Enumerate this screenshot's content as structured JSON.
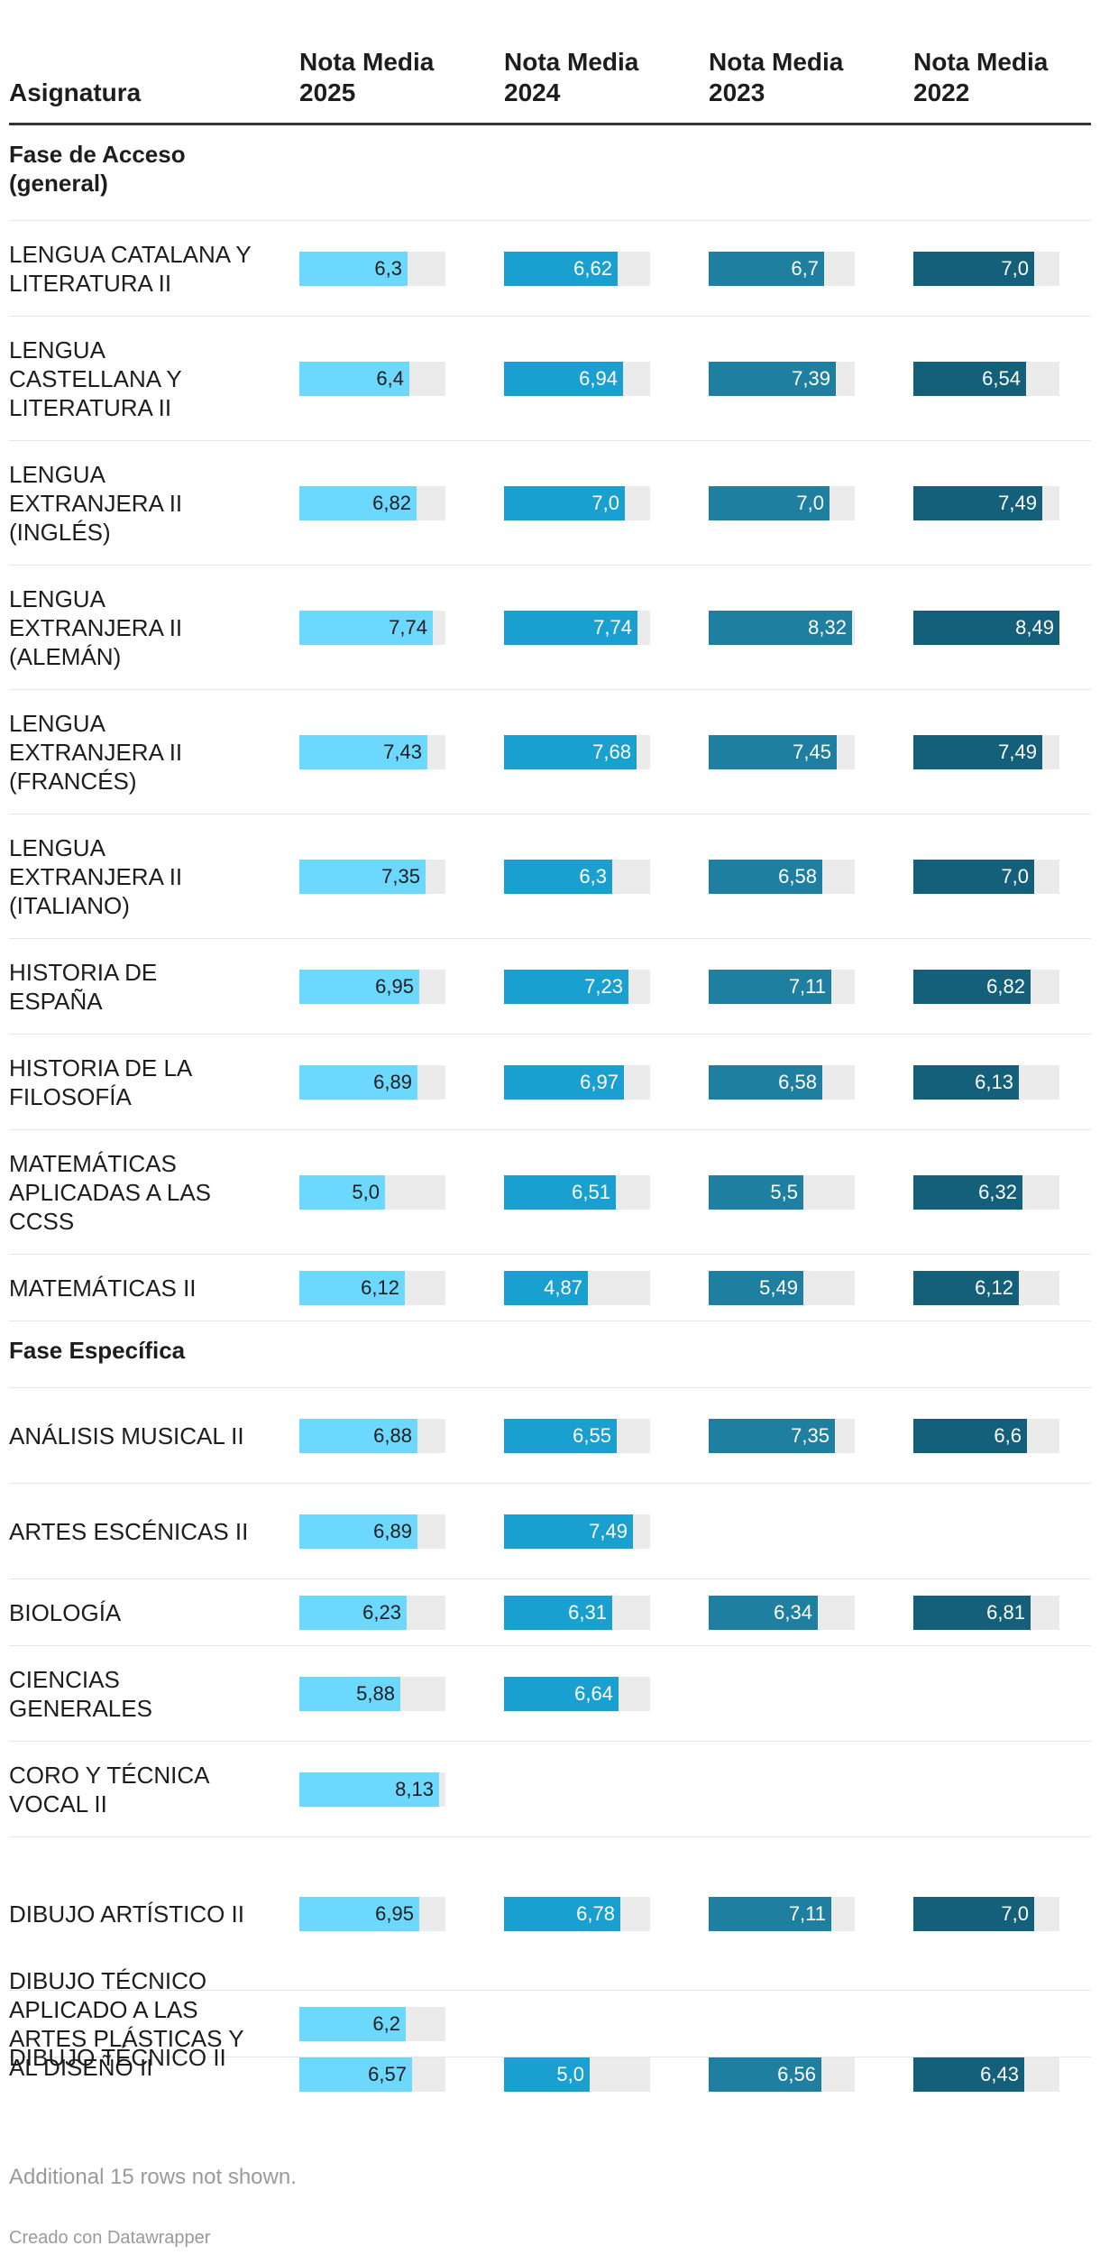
{
  "header": {
    "label_col": "Asignatura",
    "columns": [
      "Nota Media 2025",
      "Nota Media 2024",
      "Nota Media 2023",
      "Nota Media 2022"
    ]
  },
  "colors": {
    "2025": "#6dd8fd",
    "2024": "#1aa0d0",
    "2023": "#1e7fa0",
    "2022": "#145f7a",
    "bar_bg": "#ebebeb"
  },
  "chart_data": {
    "type": "table",
    "columns": [
      "Nota Media 2025",
      "Nota Media 2024",
      "Nota Media 2023",
      "Nota Media 2022"
    ],
    "scale_max": 8.49,
    "rows": [
      {
        "kind": "section",
        "label": "Fase de Acceso (general)"
      },
      {
        "kind": "data",
        "label": "LENGUA CATALANA Y LITERATURA II",
        "values": [
          "6,3",
          "6,62",
          "6,7",
          "7,0"
        ]
      },
      {
        "kind": "data",
        "label": "LENGUA CASTELLANA Y LITERATURA II",
        "values": [
          "6,4",
          "6,94",
          "7,39",
          "6,54"
        ]
      },
      {
        "kind": "data",
        "label": "LENGUA EXTRANJERA II (INGLÉS)",
        "values": [
          "6,82",
          "7,0",
          "7,0",
          "7,49"
        ]
      },
      {
        "kind": "data",
        "label": "LENGUA EXTRANJERA II (ALEMÁN)",
        "values": [
          "7,74",
          "7,74",
          "8,32",
          "8,49"
        ]
      },
      {
        "kind": "data",
        "label": "LENGUA EXTRANJERA II (FRANCÉS)",
        "values": [
          "7,43",
          "7,68",
          "7,45",
          "7,49"
        ]
      },
      {
        "kind": "data",
        "label": "LENGUA EXTRANJERA II (ITALIANO)",
        "values": [
          "7,35",
          "6,3",
          "6,58",
          "7,0"
        ]
      },
      {
        "kind": "data",
        "label": "HISTORIA DE ESPAÑA",
        "values": [
          "6,95",
          "7,23",
          "7,11",
          "6,82"
        ]
      },
      {
        "kind": "data",
        "label": "HISTORIA DE LA FILOSOFÍA",
        "values": [
          "6,89",
          "6,97",
          "6,58",
          "6,13"
        ]
      },
      {
        "kind": "data",
        "label": "MATEMÁTICAS APLICADAS A LAS CCSS",
        "values": [
          "5,0",
          "6,51",
          "5,5",
          "6,32"
        ]
      },
      {
        "kind": "data",
        "label": "MATEMÁTICAS II",
        "values": [
          "6,12",
          "4,87",
          "5,49",
          "6,12"
        ]
      },
      {
        "kind": "section",
        "label": "Fase Específica"
      },
      {
        "kind": "data",
        "label": "ANÁLISIS MUSICAL II",
        "values": [
          "6,88",
          "6,55",
          "7,35",
          "6,6"
        ]
      },
      {
        "kind": "data",
        "label": "ARTES ESCÉNICAS II",
        "values": [
          "6,89",
          "7,49",
          null,
          null
        ]
      },
      {
        "kind": "data",
        "label": "BIOLOGÍA",
        "values": [
          "6,23",
          "6,31",
          "6,34",
          "6,81"
        ]
      },
      {
        "kind": "data",
        "label": "CIENCIAS GENERALES",
        "values": [
          "5,88",
          "6,64",
          null,
          null
        ]
      },
      {
        "kind": "data",
        "label": "CORO Y TÉCNICA VOCAL II",
        "values": [
          "8,13",
          null,
          null,
          null
        ]
      },
      {
        "kind": "data",
        "label": "DIBUJO ARTÍSTICO II",
        "values": [
          "6,95",
          "6,78",
          "7,11",
          "7,0"
        ]
      },
      {
        "kind": "data",
        "label": "DIBUJO TÉCNICO APLICADO A LAS ARTES PLÁSTICAS Y AL DISEÑO II",
        "values": [
          "6,2",
          null,
          null,
          null
        ]
      },
      {
        "kind": "data",
        "label": "DIBUJO TÉCNICO II",
        "values": [
          "6,57",
          "5,0",
          "6,56",
          "6,43"
        ]
      }
    ]
  },
  "footer": {
    "note": "Additional 15 rows not shown.",
    "credit": "Creado con Datawrapper"
  }
}
